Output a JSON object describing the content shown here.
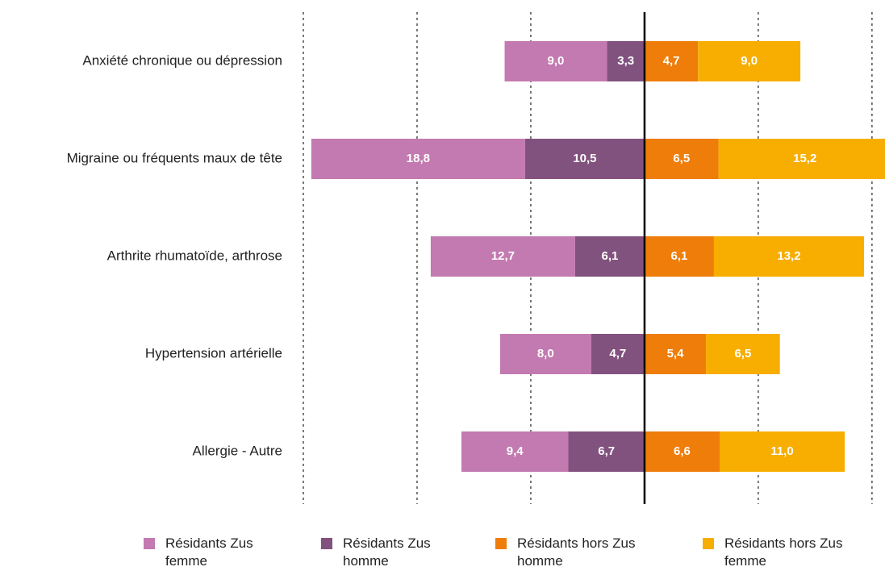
{
  "chart_data": {
    "type": "diverging_bar",
    "categories": [
      "Anxiété chronique ou dépression",
      "Migraine ou fréquents maux de tête",
      "Arthrite rhumatoïde, arthrose",
      "Hypertension artérielle",
      "Allergie - Autre"
    ],
    "series": [
      {
        "name": "Résidants Zus femme",
        "color": "#c27ab0",
        "values": [
          9.0,
          18.8,
          12.7,
          8.0,
          9.4
        ],
        "value_labels": [
          "9,0",
          "18,8",
          "12,7",
          "8,0",
          "9,4"
        ]
      },
      {
        "name": "Résidants Zus homme",
        "color": "#82527f",
        "values": [
          3.3,
          10.5,
          6.1,
          4.7,
          6.7
        ],
        "value_labels": [
          "3,3",
          "10,5",
          "6,1",
          "4,7",
          "6,7"
        ]
      },
      {
        "name": "Résidants hors Zus homme",
        "color": "#ee7d0a",
        "values": [
          4.7,
          6.5,
          6.1,
          5.4,
          6.6
        ],
        "value_labels": [
          "4,7",
          "6,5",
          "6,1",
          "5,4",
          "6,6"
        ]
      },
      {
        "name": "Résidants hors Zus femme",
        "color": "#f7ae00",
        "values": [
          9.0,
          15.2,
          13.2,
          6.5,
          11.0
        ],
        "value_labels": [
          "9,0",
          "15,2",
          "13,2",
          "6,5",
          "11,0"
        ]
      }
    ],
    "xlim": [
      -30,
      21
    ],
    "xticks": [
      -30,
      -20,
      -10,
      0,
      10,
      20
    ],
    "grid": true
  }
}
